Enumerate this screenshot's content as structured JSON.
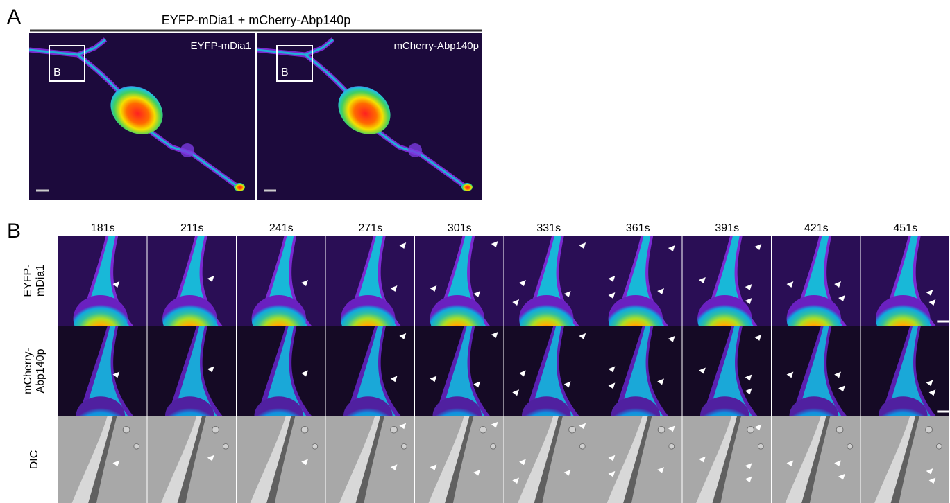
{
  "panel_a": {
    "label": "A",
    "title": "EYFP-mDia1 + mCherry-Abp140p",
    "images": [
      {
        "channel": "EYFP-mDia1",
        "box": "B"
      },
      {
        "channel": "mCherry-Abp140p",
        "box": "B"
      }
    ]
  },
  "panel_b": {
    "label": "B",
    "times": [
      "181s",
      "211s",
      "241s",
      "271s",
      "301s",
      "331s",
      "361s",
      "391s",
      "421s",
      "451s"
    ],
    "rows": [
      {
        "lines": [
          "EYFP-",
          "mDia1"
        ]
      },
      {
        "lines": [
          "mCherry-",
          "Abp140p"
        ]
      },
      {
        "lines": [
          "DIC"
        ]
      }
    ]
  }
}
